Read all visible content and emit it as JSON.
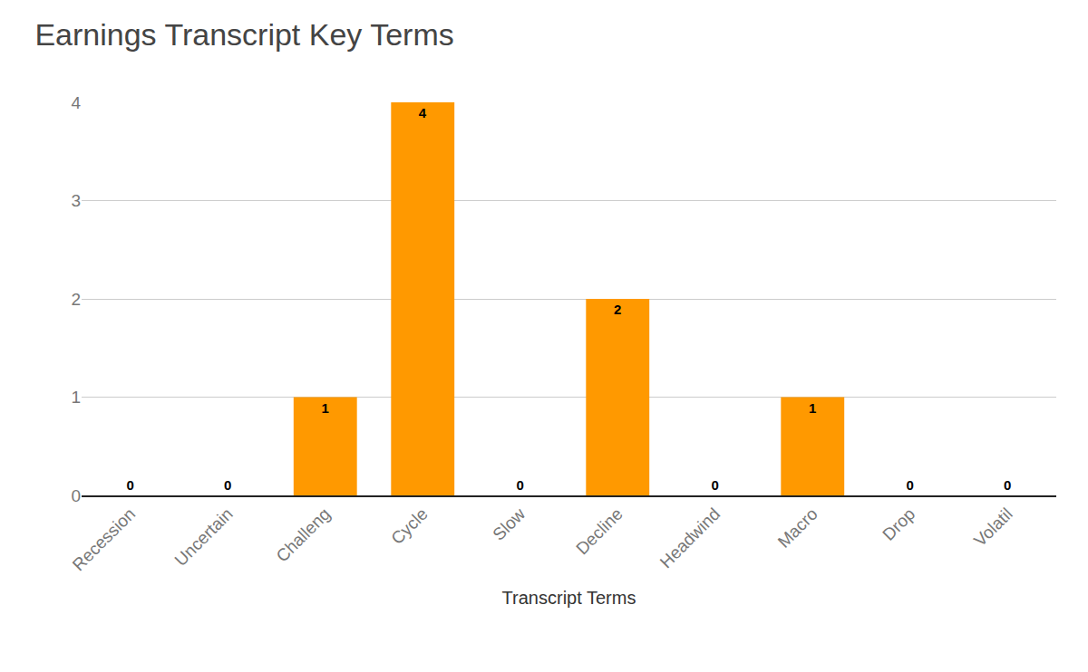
{
  "chart_data": {
    "type": "bar",
    "title": "Earnings Transcript Key Terms",
    "x_label": "Transcript Terms",
    "categories": [
      "Recession",
      "Uncertain",
      "Challeng",
      "Cycle",
      "Slow",
      "Decline",
      "Headwind",
      "Macro",
      "Drop",
      "Volatil"
    ],
    "values": [
      0,
      0,
      1,
      4,
      0,
      2,
      0,
      1,
      0,
      0
    ],
    "color": "#ff9900",
    "ylim": [
      0,
      4
    ],
    "yticks": [
      0,
      1,
      2,
      3,
      4
    ],
    "grid": true,
    "data_labels": true
  }
}
